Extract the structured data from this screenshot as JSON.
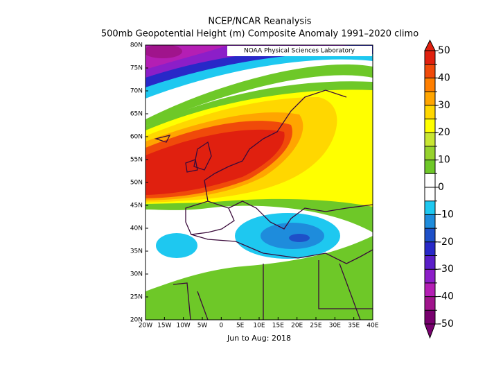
{
  "header": {
    "title": "NCEP/NCAR Reanalysis",
    "subtitle": "500mb Geopotential Height (m) Composite Anomaly 1991–2020 climo"
  },
  "credit": "NOAA Physical Sciences Laboratory",
  "map": {
    "lat_labels": [
      "80N",
      "75N",
      "70N",
      "65N",
      "60N",
      "55N",
      "50N",
      "45N",
      "40N",
      "35N",
      "30N",
      "25N",
      "20N"
    ],
    "lon_labels": [
      "20W",
      "15W",
      "10W",
      "5W",
      "0",
      "5E",
      "10E",
      "15E",
      "20E",
      "25E",
      "30E",
      "35E",
      "40E"
    ]
  },
  "period": "Jun to Aug: 2018",
  "colorbar": {
    "ticks": [
      50,
      40,
      30,
      20,
      10,
      0,
      -10,
      -20,
      -30,
      -40,
      -50
    ],
    "colors": [
      "#e0200f",
      "#f04a0a",
      "#ff7f00",
      "#ffa500",
      "#ffd700",
      "#ffff00",
      "#c8e632",
      "#96d22d",
      "#6ec828",
      "#ffffff",
      "#ffffff",
      "#1ec8f0",
      "#1e8cdc",
      "#1e50c8",
      "#2828c8",
      "#5a1ec8",
      "#8c1ec8",
      "#b41eb4",
      "#a0148c",
      "#78006e"
    ]
  }
}
